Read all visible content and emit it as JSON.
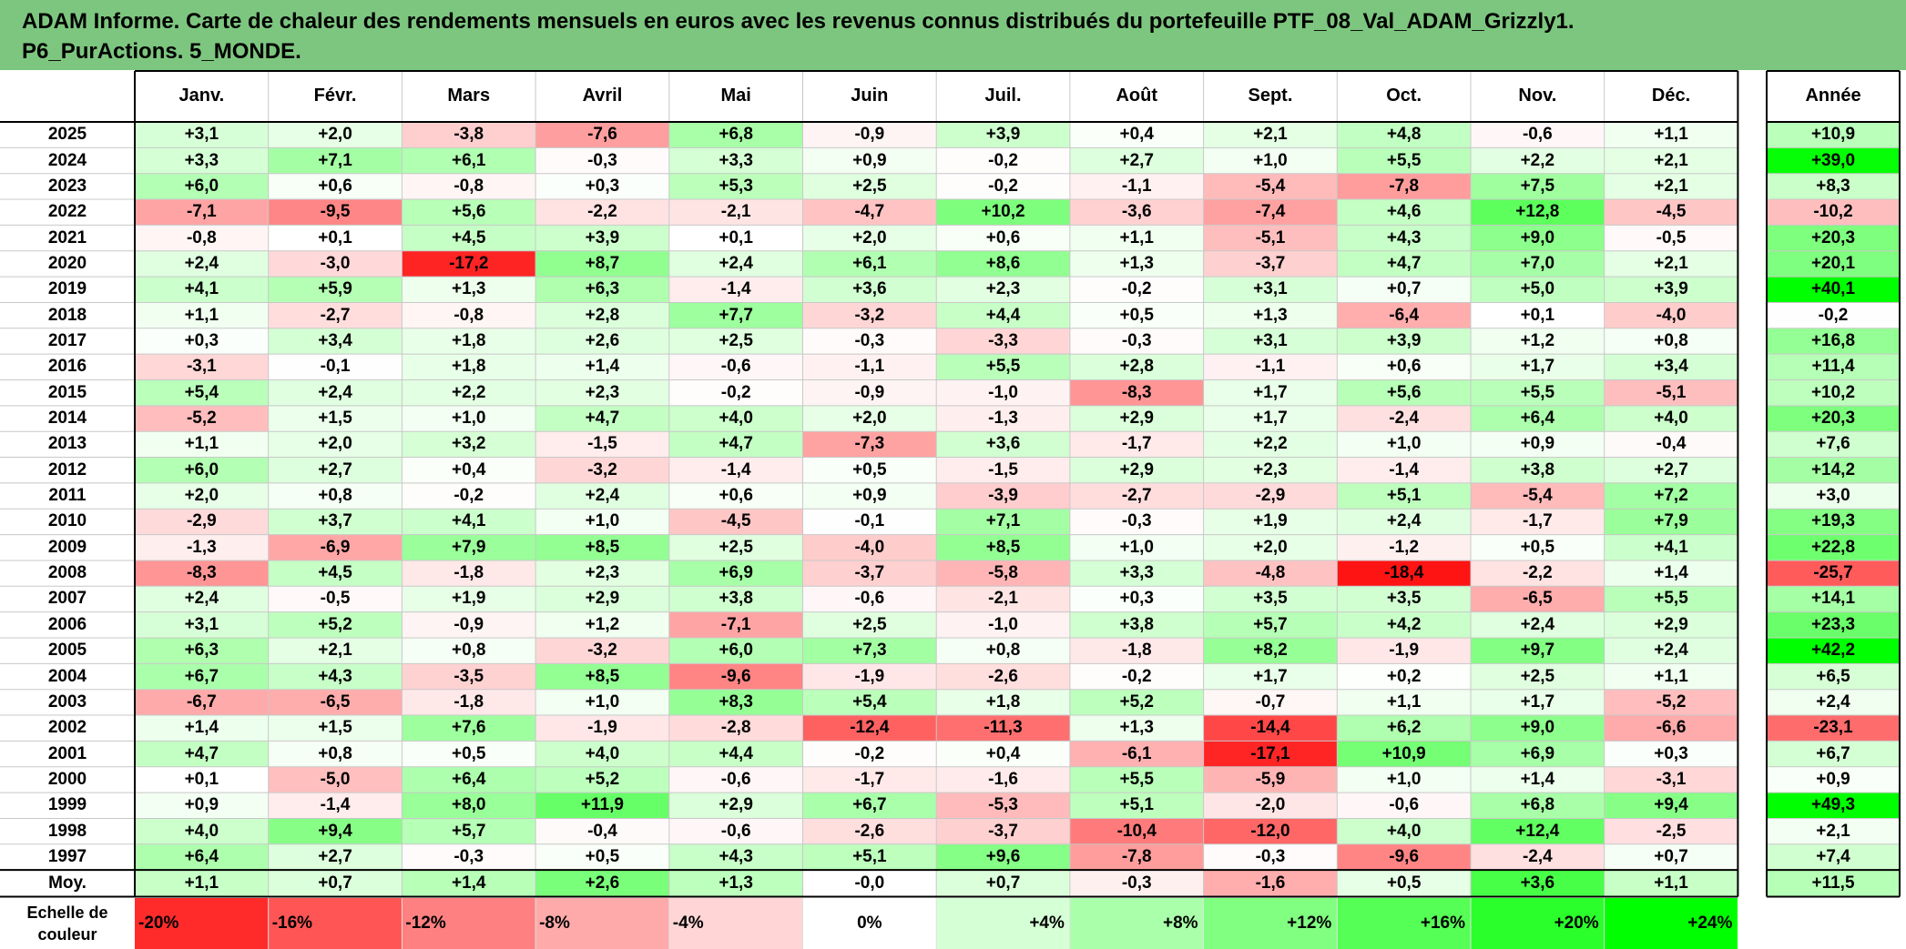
{
  "title": {
    "line1": "ADAM Informe. Carte de chaleur des rendements mensuels en euros avec les revenus connus distribués du portefeuille PTF_08_Val_ADAM_Grizzly1.",
    "line2": "P6_PurActions. 5_MONDE."
  },
  "chart_data": {
    "type": "heatmap",
    "title": "ADAM Informe. Carte de chaleur des rendements mensuels en euros avec les revenus connus distribués du portefeuille PTF_08_Val_ADAM_Grizzly1. P6_PurActions. 5_MONDE.",
    "columns": [
      "Janv.",
      "Févr.",
      "Mars",
      "Avril",
      "Mai",
      "Juin",
      "Juil.",
      "Août",
      "Sept.",
      "Oct.",
      "Nov.",
      "Déc."
    ],
    "year_column_label": "Année",
    "rows": [
      {
        "year": "2025",
        "values": [
          "+3,1",
          "+2,0",
          "-3,8",
          "-7,6",
          "+6,8",
          "-0,9",
          "+3,9",
          "+0,4",
          "+2,1",
          "+4,8",
          "-0,6",
          "+1,1"
        ],
        "annual": "+10,9"
      },
      {
        "year": "2024",
        "values": [
          "+3,3",
          "+7,1",
          "+6,1",
          "-0,3",
          "+3,3",
          "+0,9",
          "-0,2",
          "+2,7",
          "+1,0",
          "+5,5",
          "+2,2",
          "+2,1"
        ],
        "annual": "+39,0"
      },
      {
        "year": "2023",
        "values": [
          "+6,0",
          "+0,6",
          "-0,8",
          "+0,3",
          "+5,3",
          "+2,5",
          "-0,2",
          "-1,1",
          "-5,4",
          "-7,8",
          "+7,5",
          "+2,1"
        ],
        "annual": "+8,3"
      },
      {
        "year": "2022",
        "values": [
          "-7,1",
          "-9,5",
          "+5,6",
          "-2,2",
          "-2,1",
          "-4,7",
          "+10,2",
          "-3,6",
          "-7,4",
          "+4,6",
          "+12,8",
          "-4,5"
        ],
        "annual": "-10,2"
      },
      {
        "year": "2021",
        "values": [
          "-0,8",
          "+0,1",
          "+4,5",
          "+3,9",
          "+0,1",
          "+2,0",
          "+0,6",
          "+1,1",
          "-5,1",
          "+4,3",
          "+9,0",
          "-0,5"
        ],
        "annual": "+20,3"
      },
      {
        "year": "2020",
        "values": [
          "+2,4",
          "-3,0",
          "-17,2",
          "+8,7",
          "+2,4",
          "+6,1",
          "+8,6",
          "+1,3",
          "-3,7",
          "+4,7",
          "+7,0",
          "+2,1"
        ],
        "annual": "+20,1"
      },
      {
        "year": "2019",
        "values": [
          "+4,1",
          "+5,9",
          "+1,3",
          "+6,3",
          "-1,4",
          "+3,6",
          "+2,3",
          "-0,2",
          "+3,1",
          "+0,7",
          "+5,0",
          "+3,9"
        ],
        "annual": "+40,1"
      },
      {
        "year": "2018",
        "values": [
          "+1,1",
          "-2,7",
          "-0,8",
          "+2,8",
          "+7,7",
          "-3,2",
          "+4,4",
          "+0,5",
          "+1,3",
          "-6,4",
          "+0,1",
          "-4,0"
        ],
        "annual": "-0,2"
      },
      {
        "year": "2017",
        "values": [
          "+0,3",
          "+3,4",
          "+1,8",
          "+2,6",
          "+2,5",
          "-0,3",
          "-3,3",
          "-0,3",
          "+3,1",
          "+3,9",
          "+1,2",
          "+0,8"
        ],
        "annual": "+16,8"
      },
      {
        "year": "2016",
        "values": [
          "-3,1",
          "-0,1",
          "+1,8",
          "+1,4",
          "-0,6",
          "-1,1",
          "+5,5",
          "+2,8",
          "-1,1",
          "+0,6",
          "+1,7",
          "+3,4"
        ],
        "annual": "+11,4"
      },
      {
        "year": "2015",
        "values": [
          "+5,4",
          "+2,4",
          "+2,2",
          "+2,3",
          "-0,2",
          "-0,9",
          "-1,0",
          "-8,3",
          "+1,7",
          "+5,6",
          "+5,5",
          "-5,1"
        ],
        "annual": "+10,2"
      },
      {
        "year": "2014",
        "values": [
          "-5,2",
          "+1,5",
          "+1,0",
          "+4,7",
          "+4,0",
          "+2,0",
          "-1,3",
          "+2,9",
          "+1,7",
          "-2,4",
          "+6,4",
          "+4,0"
        ],
        "annual": "+20,3"
      },
      {
        "year": "2013",
        "values": [
          "+1,1",
          "+2,0",
          "+3,2",
          "-1,5",
          "+4,7",
          "-7,3",
          "+3,6",
          "-1,7",
          "+2,2",
          "+1,0",
          "+0,9",
          "-0,4"
        ],
        "annual": "+7,6"
      },
      {
        "year": "2012",
        "values": [
          "+6,0",
          "+2,7",
          "+0,4",
          "-3,2",
          "-1,4",
          "+0,5",
          "-1,5",
          "+2,9",
          "+2,3",
          "-1,4",
          "+3,8",
          "+2,7"
        ],
        "annual": "+14,2"
      },
      {
        "year": "2011",
        "values": [
          "+2,0",
          "+0,8",
          "-0,2",
          "+2,4",
          "+0,6",
          "+0,9",
          "-3,9",
          "-2,7",
          "-2,9",
          "+5,1",
          "-5,4",
          "+7,2"
        ],
        "annual": "+3,0"
      },
      {
        "year": "2010",
        "values": [
          "-2,9",
          "+3,7",
          "+4,1",
          "+1,0",
          "-4,5",
          "-0,1",
          "+7,1",
          "-0,3",
          "+1,9",
          "+2,4",
          "-1,7",
          "+7,9"
        ],
        "annual": "+19,3"
      },
      {
        "year": "2009",
        "values": [
          "-1,3",
          "-6,9",
          "+7,9",
          "+8,5",
          "+2,5",
          "-4,0",
          "+8,5",
          "+1,0",
          "+2,0",
          "-1,2",
          "+0,5",
          "+4,1"
        ],
        "annual": "+22,8"
      },
      {
        "year": "2008",
        "values": [
          "-8,3",
          "+4,5",
          "-1,8",
          "+2,3",
          "+6,9",
          "-3,7",
          "-5,8",
          "+3,3",
          "-4,8",
          "-18,4",
          "-2,2",
          "+1,4"
        ],
        "annual": "-25,7"
      },
      {
        "year": "2007",
        "values": [
          "+2,4",
          "-0,5",
          "+1,9",
          "+2,9",
          "+3,8",
          "-0,6",
          "-2,1",
          "+0,3",
          "+3,5",
          "+3,5",
          "-6,5",
          "+5,5"
        ],
        "annual": "+14,1"
      },
      {
        "year": "2006",
        "values": [
          "+3,1",
          "+5,2",
          "-0,9",
          "+1,2",
          "-7,1",
          "+2,5",
          "-1,0",
          "+3,8",
          "+5,7",
          "+4,2",
          "+2,4",
          "+2,9"
        ],
        "annual": "+23,3"
      },
      {
        "year": "2005",
        "values": [
          "+6,3",
          "+2,1",
          "+0,8",
          "-3,2",
          "+6,0",
          "+7,3",
          "+0,8",
          "-1,8",
          "+8,2",
          "-1,9",
          "+9,7",
          "+2,4"
        ],
        "annual": "+42,2"
      },
      {
        "year": "2004",
        "values": [
          "+6,7",
          "+4,3",
          "-3,5",
          "+8,5",
          "-9,6",
          "-1,9",
          "-2,6",
          "-0,2",
          "+1,7",
          "+0,2",
          "+2,5",
          "+1,1"
        ],
        "annual": "+6,5"
      },
      {
        "year": "2003",
        "values": [
          "-6,7",
          "-6,5",
          "-1,8",
          "+1,0",
          "+8,3",
          "+5,4",
          "+1,8",
          "+5,2",
          "-0,7",
          "+1,1",
          "+1,7",
          "-5,2"
        ],
        "annual": "+2,4"
      },
      {
        "year": "2002",
        "values": [
          "+1,4",
          "+1,5",
          "+7,6",
          "-1,9",
          "-2,8",
          "-12,4",
          "-11,3",
          "+1,3",
          "-14,4",
          "+6,2",
          "+9,0",
          "-6,6"
        ],
        "annual": "-23,1"
      },
      {
        "year": "2001",
        "values": [
          "+4,7",
          "+0,8",
          "+0,5",
          "+4,0",
          "+4,4",
          "-0,2",
          "+0,4",
          "-6,1",
          "-17,1",
          "+10,9",
          "+6,9",
          "+0,3"
        ],
        "annual": "+6,7"
      },
      {
        "year": "2000",
        "values": [
          "+0,1",
          "-5,0",
          "+6,4",
          "+5,2",
          "-0,6",
          "-1,7",
          "-1,6",
          "+5,5",
          "-5,9",
          "+1,0",
          "+1,4",
          "-3,1"
        ],
        "annual": "+0,9"
      },
      {
        "year": "1999",
        "values": [
          "+0,9",
          "-1,4",
          "+8,0",
          "+11,9",
          "+2,9",
          "+6,7",
          "-5,3",
          "+5,1",
          "-2,0",
          "-0,6",
          "+6,8",
          "+9,4"
        ],
        "annual": "+49,3"
      },
      {
        "year": "1998",
        "values": [
          "+4,0",
          "+9,4",
          "+5,7",
          "-0,4",
          "-0,6",
          "-2,6",
          "-3,7",
          "-10,4",
          "-12,0",
          "+4,0",
          "+12,4",
          "-2,5"
        ],
        "annual": "+2,1"
      },
      {
        "year": "1997",
        "values": [
          "+6,4",
          "+2,7",
          "-0,3",
          "+0,5",
          "+4,3",
          "+5,1",
          "+9,6",
          "-7,8",
          "-0,3",
          "-9,6",
          "-2,4",
          "+0,7"
        ],
        "annual": "+7,4"
      }
    ],
    "average": {
      "label": "Moy.",
      "values": [
        "+1,1",
        "+0,7",
        "+1,4",
        "+2,6",
        "+1,3",
        "-0,0",
        "+0,7",
        "-0,3",
        "-1,6",
        "+0,5",
        "+3,6",
        "+1,1"
      ],
      "annual": "+11,5"
    },
    "color_scale": {
      "label_line1": "Echelle de",
      "label_line2": "couleur",
      "steps": [
        "-20%",
        "-16%",
        "-12%",
        "-8%",
        "-4%",
        "0%",
        "+4%",
        "+8%",
        "+12%",
        "+16%",
        "+20%",
        "+24%"
      ],
      "negative_color": "#ff0000",
      "positive_color": "#00ff00",
      "neutral_color": "#ffffff"
    }
  }
}
